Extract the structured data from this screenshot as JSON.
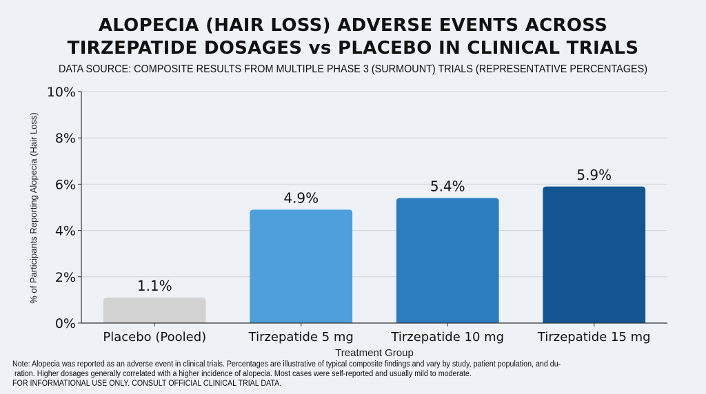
{
  "chart_data": {
    "type": "bar",
    "title": "ALOPECIA (HAIR LOSS) ADVERSE EVENTS ACROSS TIRZEPATIDE DOSAGES vs PLACEBO IN CLINICAL TRIALS",
    "title_lines": [
      "ALOPECIA (HAIR LOSS) ADVERSE EVENTS ACROSS",
      "TIRZEPATIDE DOSAGES vs PLACEBO IN CLINICAL TRIALS"
    ],
    "subtitle": "DATA SOURCE: COMPOSITE RESULTS FROM MULTIPLE PHASE 3 (SURMOUNT) TRIALS (REPRESENTATIVE PERCENTAGES)",
    "xlabel": "Treatment Group",
    "ylabel": "% of Participants Reporting Alopecia (Hair Loss)",
    "ylim": [
      0,
      10
    ],
    "yticks": [
      0,
      2,
      4,
      6,
      8,
      10
    ],
    "ytick_labels": [
      "0%",
      "2%",
      "4%",
      "6%",
      "8%",
      "10%"
    ],
    "grid": true,
    "categories": [
      "Placebo (Pooled)",
      "Tirzepatide 5 mg",
      "Tirzepatide 10 mg",
      "Tirzepatide 15 mg"
    ],
    "values": [
      1.1,
      4.9,
      5.4,
      5.9
    ],
    "data_labels": [
      "1.1%",
      "4.9%",
      "5.4%",
      "5.9%"
    ],
    "colors": [
      "#d2d2d2",
      "#4f9fdc",
      "#2c7cc0",
      "#135592"
    ]
  },
  "notes": [
    "Note: Alopecia was reported as an adverse event in clinical trials. Percentages are illustrative of typical composite findings and vary by study, patient population, and du-",
    "ration. Higher dosages generally correlated with a higher incidence of alopecia. Most cases were self-reported and usually mild to moderate.",
    "FOR INFORMATIONAL USE ONLY. CONSULT OFFICIAL CLINICAL TRIAL DATA."
  ]
}
